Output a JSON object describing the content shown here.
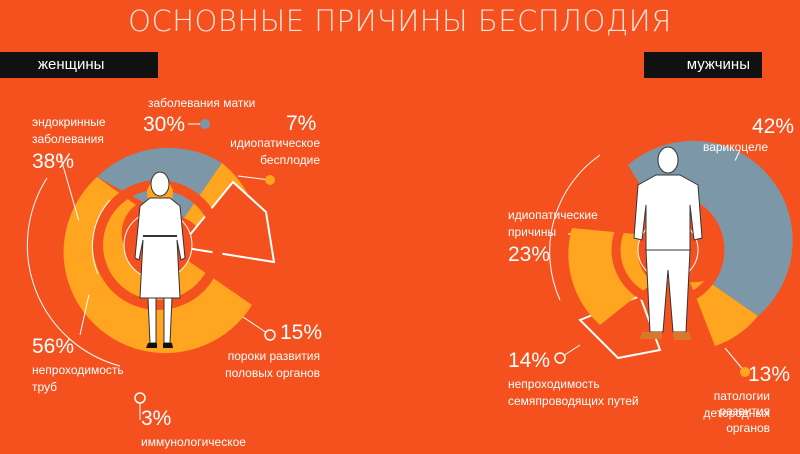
{
  "title": "ОСНОВНЫЕ ПРИЧИНЫ БЕСПЛОДИЯ",
  "tabs": {
    "women": "женщины",
    "men": "мужчины"
  },
  "colors": {
    "background": "#f4511e",
    "gray": "#7c98a8",
    "yellow": "#ffa51f",
    "orange": "#f4511e",
    "dark": "#111111"
  },
  "women_labels": {
    "uterus": "заболевания матки",
    "endocrine_1": "эндокринные",
    "endocrine_2": "заболевания",
    "idiopathic_1": "идиопатическое",
    "idiopathic_2": "бесплодие",
    "malformations_1": "пороки развития",
    "malformations_2": "половых органов",
    "tubal_1": "непроходимость",
    "tubal_2": "труб",
    "immuno": "иммунологическое"
  },
  "men_labels": {
    "varicocele": "варикоцеле",
    "idiopathic_1": "идиопатические",
    "idiopathic_2": "причины",
    "obstruction_1": "непроходимость",
    "obstruction_2": "семяпроводящих путей",
    "pathology_1": "патологии развития",
    "pathology_2": "детородных органов"
  },
  "chart_data": [
    {
      "type": "pie",
      "group": "женщины",
      "slices": [
        {
          "label": "заболевания матки",
          "value": 30,
          "display": "30%"
        },
        {
          "label": "идиопатическое бесплодие",
          "value": 7,
          "display": "7%"
        },
        {
          "label": "пороки развития половых органов",
          "value": 15,
          "display": "15%"
        },
        {
          "label": "непроходимость труб",
          "value": 56,
          "display": "56%"
        },
        {
          "label": "эндокринные заболевания",
          "value": 38,
          "display": "38%"
        },
        {
          "label": "иммунологическое",
          "value": 3,
          "display": "3%"
        }
      ]
    },
    {
      "type": "pie",
      "group": "мужчины",
      "slices": [
        {
          "label": "варикоцеле",
          "value": 42,
          "display": "42%"
        },
        {
          "label": "патологии развития детородных органов",
          "value": 13,
          "display": "13%"
        },
        {
          "label": "непроходимость семяпроводящих путей",
          "value": 14,
          "display": "14%"
        },
        {
          "label": "идиопатические причины",
          "value": 23,
          "display": "23%"
        }
      ]
    }
  ]
}
